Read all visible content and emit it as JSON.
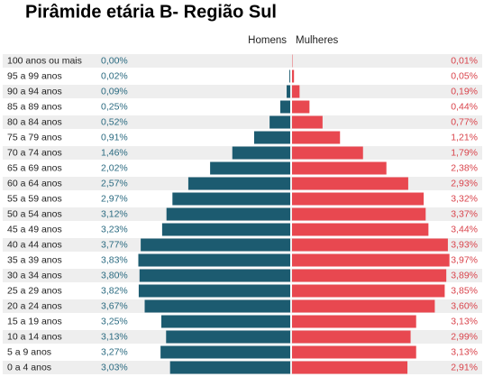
{
  "chart_data": {
    "type": "pyramid",
    "title": "Pirâmide etária B- Região Sul",
    "categories": [
      "100 anos ou mais",
      "95 a 99 anos",
      "90 a 94 anos",
      "85 a 89 anos",
      "80 a 84 anos",
      "75 a 79 anos",
      "70 a 74 anos",
      "65 a 69 anos",
      "60 a 64 anos",
      "55 a 59 anos",
      "50 a 54 anos",
      "45 a 49 anos",
      "40 a 44 anos",
      "35 a 39 anos",
      "30 a 34 anos",
      "25 a 29 anos",
      "20 a 24 anos",
      "15 a 19 anos",
      "10 a 14 anos",
      "5 a 9 anos",
      "0 a 4 anos"
    ],
    "series": [
      {
        "name": "Homens",
        "color": "#1c5b70",
        "values": [
          0,
          0.02,
          0.09,
          0.25,
          0.52,
          0.91,
          1.46,
          2.02,
          2.57,
          2.97,
          3.12,
          3.23,
          3.77,
          3.83,
          3.8,
          3.82,
          3.67,
          3.25,
          3.13,
          3.27,
          3.03
        ],
        "value_labels": [
          "0,00%",
          "0,02%",
          "0,09%",
          "0,25%",
          "0,52%",
          "0,91%",
          "1,46%",
          "2,02%",
          "2,57%",
          "2,97%",
          "3,12%",
          "3,23%",
          "3,77%",
          "3,83%",
          "3,80%",
          "3,82%",
          "3,67%",
          "3,25%",
          "3,13%",
          "3,27%",
          "3,03%"
        ]
      },
      {
        "name": "Mulheres",
        "color": "#e84850",
        "values": [
          0.01,
          0.05,
          0.19,
          0.44,
          0.77,
          1.21,
          1.79,
          2.38,
          2.93,
          3.32,
          3.37,
          3.44,
          3.93,
          3.97,
          3.89,
          3.85,
          3.6,
          3.13,
          2.99,
          3.13,
          2.91
        ],
        "value_labels": [
          "0,01%",
          "0,05%",
          "0,19%",
          "0,44%",
          "0,77%",
          "1,21%",
          "1,79%",
          "2,38%",
          "2,93%",
          "3,32%",
          "3,37%",
          "3,44%",
          "3,93%",
          "3,97%",
          "3,89%",
          "3,85%",
          "3,60%",
          "3,13%",
          "2,99%",
          "3,13%",
          "2,91%"
        ]
      }
    ]
  }
}
